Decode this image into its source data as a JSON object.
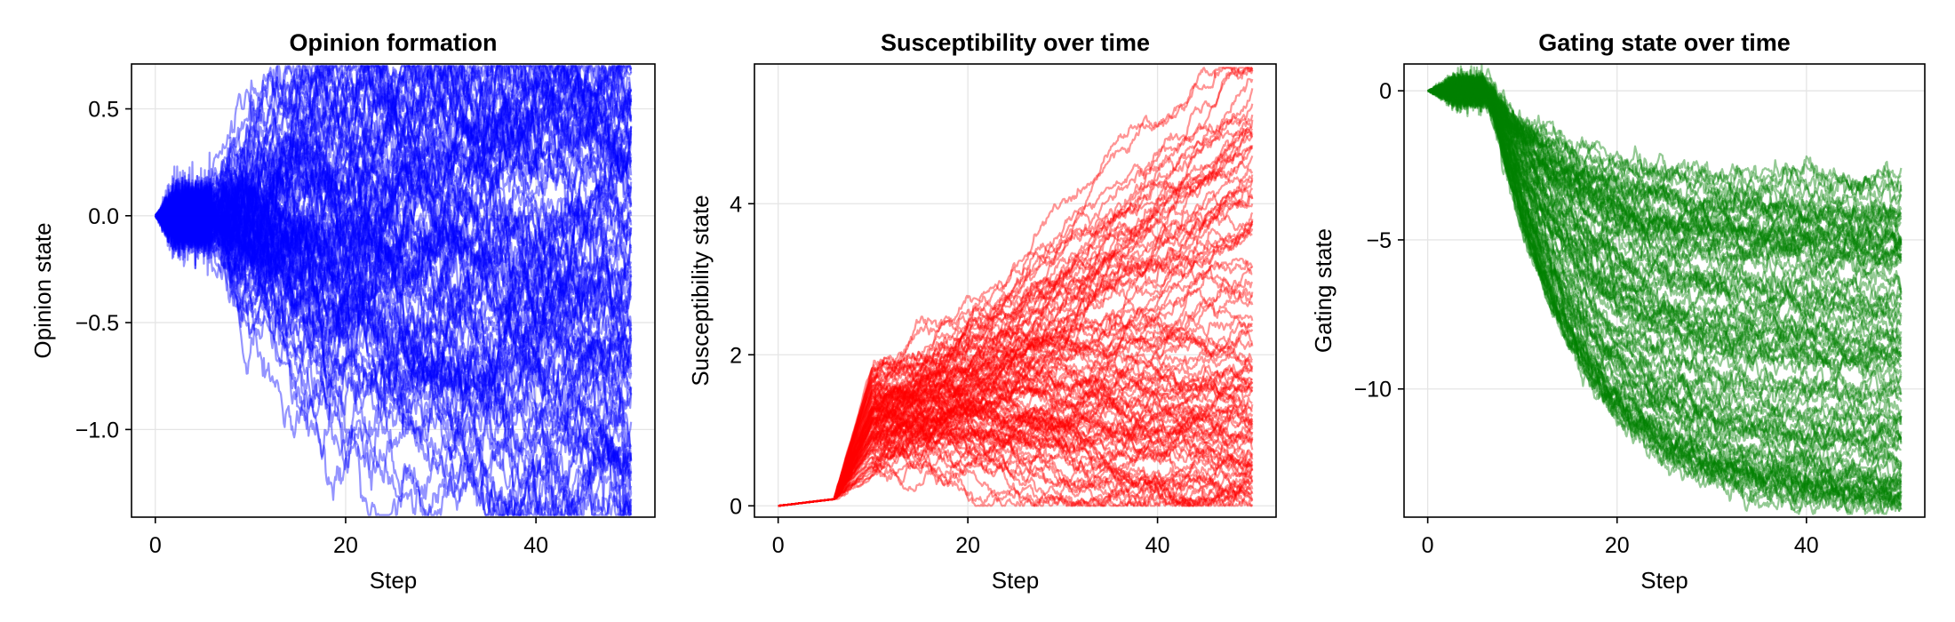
{
  "chart_data": [
    {
      "type": "line",
      "title": "Opinion formation",
      "xlabel": "Step",
      "ylabel": "Opinion state",
      "xlim": [
        -2.5,
        52.5
      ],
      "ylim": [
        -1.41,
        0.71
      ],
      "xticks": [
        0,
        20,
        40
      ],
      "yticks": [
        -1.0,
        -0.5,
        0.0,
        0.5
      ],
      "ytick_labels": [
        "−1.0",
        "−0.5",
        "0.0",
        "0.5"
      ],
      "color": "#0000ff",
      "n_series": 100,
      "steps": [
        0,
        50
      ],
      "spread_at_step_50": [
        -1.4,
        0.7
      ],
      "grid": true
    },
    {
      "type": "line",
      "title": "Susceptibility over time",
      "xlabel": "Step",
      "ylabel": "Susceptibility state",
      "xlim": [
        -2.5,
        52.5
      ],
      "ylim": [
        -0.15,
        5.85
      ],
      "xticks": [
        0,
        20,
        40
      ],
      "yticks": [
        0,
        2,
        4
      ],
      "ytick_labels": [
        "0",
        "2",
        "4"
      ],
      "color": "#ff0000",
      "n_series": 100,
      "steps": [
        0,
        50
      ],
      "spread_at_step_50": [
        0.15,
        5.8
      ],
      "grid": true
    },
    {
      "type": "line",
      "title": "Gating state over time",
      "xlabel": "Step",
      "ylabel": "Gating state",
      "xlim": [
        -2.5,
        52.5
      ],
      "ylim": [
        -14.3,
        0.9
      ],
      "xticks": [
        0,
        20,
        40
      ],
      "yticks": [
        -10,
        -5,
        0
      ],
      "ytick_labels": [
        "−10",
        "−5",
        "0"
      ],
      "color": "#008000",
      "n_series": 100,
      "steps": [
        0,
        50
      ],
      "spread_at_step_50": [
        -14.2,
        -2.8
      ],
      "grid": true
    }
  ]
}
